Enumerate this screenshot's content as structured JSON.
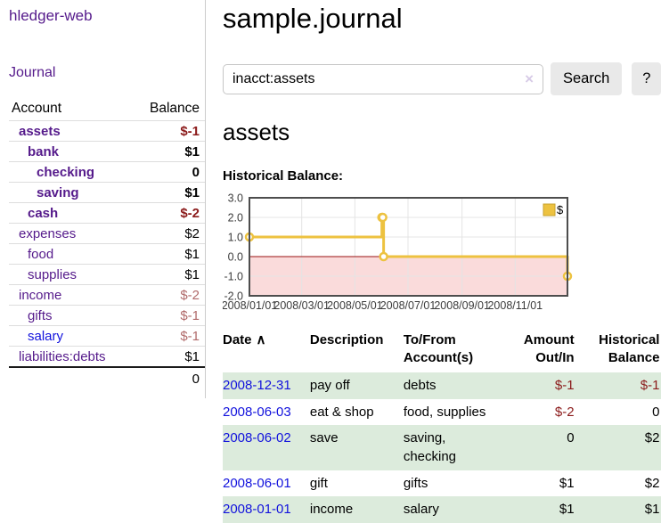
{
  "app_title": "hledger-web",
  "sidebar": {
    "journal_link": "Journal",
    "accounts": {
      "header_account": "Account",
      "header_balance": "Balance",
      "rows": [
        {
          "name": "assets",
          "balance": "$-1",
          "depth": 1,
          "bold": true
        },
        {
          "name": "bank",
          "balance": "$1",
          "depth": 2,
          "bold": true
        },
        {
          "name": "checking",
          "balance": "0",
          "depth": 3,
          "bold": true
        },
        {
          "name": "saving",
          "balance": "$1",
          "depth": 3,
          "bold": true
        },
        {
          "name": "cash",
          "balance": "$-2",
          "depth": 2,
          "bold": true
        },
        {
          "name": "expenses",
          "balance": "$2",
          "depth": 1
        },
        {
          "name": "food",
          "balance": "$1",
          "depth": 2
        },
        {
          "name": "supplies",
          "balance": "$1",
          "depth": 2
        },
        {
          "name": "income",
          "balance": "$-2",
          "depth": 1
        },
        {
          "name": "gifts",
          "balance": "$-1",
          "depth": 2
        },
        {
          "name": "salary",
          "balance": "$-1",
          "depth": 2,
          "unvisited": true
        },
        {
          "name": "liabilities:debts",
          "balance": "$1",
          "depth": 1
        }
      ],
      "total": "0"
    }
  },
  "main": {
    "title": "sample.journal",
    "search": {
      "value": "inacct:assets",
      "clear_icon": "×",
      "search_button": "Search",
      "help_button": "?"
    },
    "account_heading": "assets",
    "chart_label": "Historical Balance:"
  },
  "chart_data": {
    "type": "line",
    "step": true,
    "title": "Historical Balance:",
    "series": [
      {
        "name": "$",
        "color": "#edc240",
        "points": [
          [
            "2008/01/01",
            1
          ],
          [
            "2008/06/01",
            2
          ],
          [
            "2008/06/02",
            2
          ],
          [
            "2008/06/03",
            0
          ],
          [
            "2008/12/31",
            -1
          ]
        ]
      }
    ],
    "xlim": [
      "2008/01/01",
      "2008/12/31"
    ],
    "ylim": [
      -2,
      3
    ],
    "y_ticks": [
      "3.0",
      "2.0",
      "1.0",
      "0.0",
      "-1.0",
      "-2.0"
    ],
    "x_ticks": [
      "2008/01/01",
      "2008/03/01",
      "2008/05/01",
      "2008/07/01",
      "2008/09/01",
      "2008/11/01"
    ],
    "legend_position": "top-right",
    "grid": true,
    "negative_region_color": "#fadbdb",
    "zero_line_color": "#991111",
    "grid_color": "#e4e4e4",
    "border_color": "#4d4d4d",
    "legend_box_border": "#c7a22e"
  },
  "register": {
    "headers": [
      {
        "label": "Date",
        "sort": "∧"
      },
      {
        "label": "Description"
      },
      {
        "label": "To/From\nAccount(s)"
      },
      {
        "label": "Amount\nOut/In",
        "align": "right"
      },
      {
        "label": "Historical\nBalance",
        "align": "right"
      }
    ],
    "rows": [
      {
        "date": "2008-12-31",
        "description": "pay off",
        "accounts": "debts",
        "amount": "$-1",
        "balance": "$-1",
        "shaded": true
      },
      {
        "date": "2008-06-03",
        "description": "eat & shop",
        "accounts": "food, supplies",
        "amount": "$-2",
        "balance": "0",
        "shaded": false
      },
      {
        "date": "2008-06-02",
        "description": "save",
        "accounts": "saving,\nchecking",
        "amount": "0",
        "balance": "$2",
        "shaded": true
      },
      {
        "date": "2008-06-01",
        "description": "gift",
        "accounts": "gifts",
        "amount": "$1",
        "balance": "$2",
        "shaded": false
      },
      {
        "date": "2008-01-01",
        "description": "income",
        "accounts": "salary",
        "amount": "$1",
        "balance": "$1",
        "shaded": true
      }
    ]
  },
  "colors": {
    "link_purple": "#551a8b",
    "link_blue": "#1212dd",
    "negative_dark": "#8b1a1a",
    "negative_light": "#b06a6a",
    "row_shade_green": "#dcebdc",
    "chart_line": "#edc240"
  }
}
